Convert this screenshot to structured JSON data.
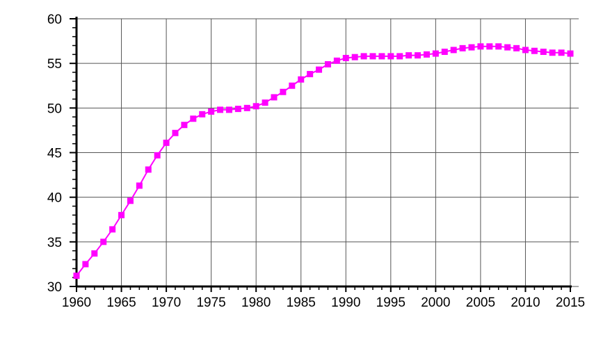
{
  "chart_data": {
    "type": "line",
    "title": "",
    "xlabel": "",
    "ylabel": "",
    "xlim": [
      1960,
      2015
    ],
    "ylim": [
      30,
      60
    ],
    "grid": true,
    "x_ticks": [
      1960,
      1965,
      1970,
      1975,
      1980,
      1985,
      1990,
      1995,
      2000,
      2005,
      2010,
      2015
    ],
    "y_ticks": [
      30,
      35,
      40,
      45,
      50,
      55,
      60
    ],
    "series": [
      {
        "color": "#ff00ff",
        "marker": "square",
        "x": [
          1960,
          1961,
          1962,
          1963,
          1964,
          1965,
          1966,
          1967,
          1968,
          1969,
          1970,
          1971,
          1972,
          1973,
          1974,
          1975,
          1976,
          1977,
          1978,
          1979,
          1980,
          1981,
          1982,
          1983,
          1984,
          1985,
          1986,
          1987,
          1988,
          1989,
          1990,
          1991,
          1992,
          1993,
          1994,
          1995,
          1996,
          1997,
          1998,
          1999,
          2000,
          2001,
          2002,
          2003,
          2004,
          2005,
          2006,
          2007,
          2008,
          2009,
          2010,
          2011,
          2012,
          2013,
          2014,
          2015
        ],
        "y": [
          31.2,
          32.5,
          33.7,
          35.0,
          36.4,
          38.0,
          39.6,
          41.3,
          43.1,
          44.7,
          46.1,
          47.2,
          48.1,
          48.8,
          49.3,
          49.6,
          49.8,
          49.8,
          49.9,
          50.0,
          50.2,
          50.6,
          51.2,
          51.8,
          52.5,
          53.2,
          53.8,
          54.3,
          54.9,
          55.3,
          55.6,
          55.7,
          55.8,
          55.8,
          55.8,
          55.8,
          55.8,
          55.9,
          55.9,
          56.0,
          56.1,
          56.3,
          56.5,
          56.7,
          56.8,
          56.9,
          56.9,
          56.9,
          56.8,
          56.7,
          56.5,
          56.4,
          56.3,
          56.2,
          56.2,
          56.1
        ]
      }
    ]
  }
}
